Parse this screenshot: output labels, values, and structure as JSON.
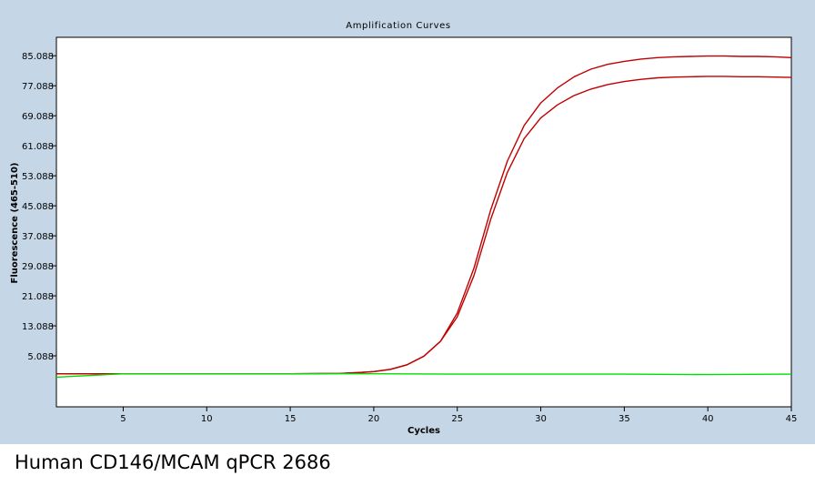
{
  "chart_data": {
    "type": "line",
    "title": "Amplification Curves",
    "xlabel": "Cycles",
    "ylabel": "Fluorescence (465-510)",
    "xlim": [
      1,
      45
    ],
    "ylim": [
      -8.5,
      90
    ],
    "x_ticks": [
      5,
      10,
      15,
      20,
      25,
      30,
      35,
      40,
      45
    ],
    "y_ticks": [
      5.088,
      13.088,
      21.088,
      29.088,
      37.088,
      45.088,
      53.088,
      61.088,
      69.088,
      77.088,
      85.088
    ],
    "y_tick_labels": [
      "5.088",
      "13.088",
      "21.088",
      "29.088",
      "37.088",
      "45.088",
      "53.088",
      "61.088",
      "69.088",
      "77.088",
      "85.088"
    ],
    "x_tick_labels": [
      "5",
      "10",
      "15",
      "20",
      "25",
      "30",
      "35",
      "40",
      "45"
    ],
    "grid": false,
    "legend": "none",
    "series": [
      {
        "color": "#c00000",
        "x": [
          1,
          5,
          10,
          15,
          18,
          19,
          20,
          21,
          22,
          23,
          24,
          25,
          26,
          27,
          28,
          29,
          30,
          31,
          32,
          33,
          34,
          35,
          36,
          37,
          38,
          39,
          40,
          41,
          42,
          43,
          44,
          45
        ],
        "y": [
          0.3,
          0.3,
          0.3,
          0.3,
          0.4,
          0.6,
          0.9,
          1.5,
          2.7,
          5.0,
          9.0,
          16.5,
          28.5,
          44.0,
          57.0,
          66.5,
          72.5,
          76.5,
          79.5,
          81.5,
          82.8,
          83.6,
          84.2,
          84.6,
          84.8,
          84.9,
          85.0,
          85.0,
          84.9,
          84.9,
          84.8,
          84.6
        ]
      },
      {
        "color": "#c00000",
        "x": [
          1,
          5,
          10,
          15,
          18,
          19,
          20,
          21,
          22,
          23,
          24,
          25,
          26,
          27,
          28,
          29,
          30,
          31,
          32,
          33,
          34,
          35,
          36,
          37,
          38,
          39,
          40,
          41,
          42,
          43,
          44,
          45
        ],
        "y": [
          0.3,
          0.3,
          0.3,
          0.3,
          0.4,
          0.6,
          0.9,
          1.5,
          2.7,
          5.0,
          9.0,
          15.5,
          26.5,
          41.5,
          54.0,
          63.0,
          68.5,
          72.0,
          74.5,
          76.2,
          77.4,
          78.2,
          78.8,
          79.2,
          79.4,
          79.5,
          79.6,
          79.6,
          79.5,
          79.5,
          79.4,
          79.3
        ]
      },
      {
        "color": "#00dd00",
        "x": [
          1,
          5,
          10,
          15,
          20,
          25,
          30,
          35,
          40,
          45
        ],
        "y": [
          -0.6,
          0.3,
          0.3,
          0.3,
          0.3,
          0.2,
          0.2,
          0.2,
          0.1,
          0.2
        ]
      }
    ]
  },
  "caption": "Human CD146/MCAM qPCR 2686"
}
